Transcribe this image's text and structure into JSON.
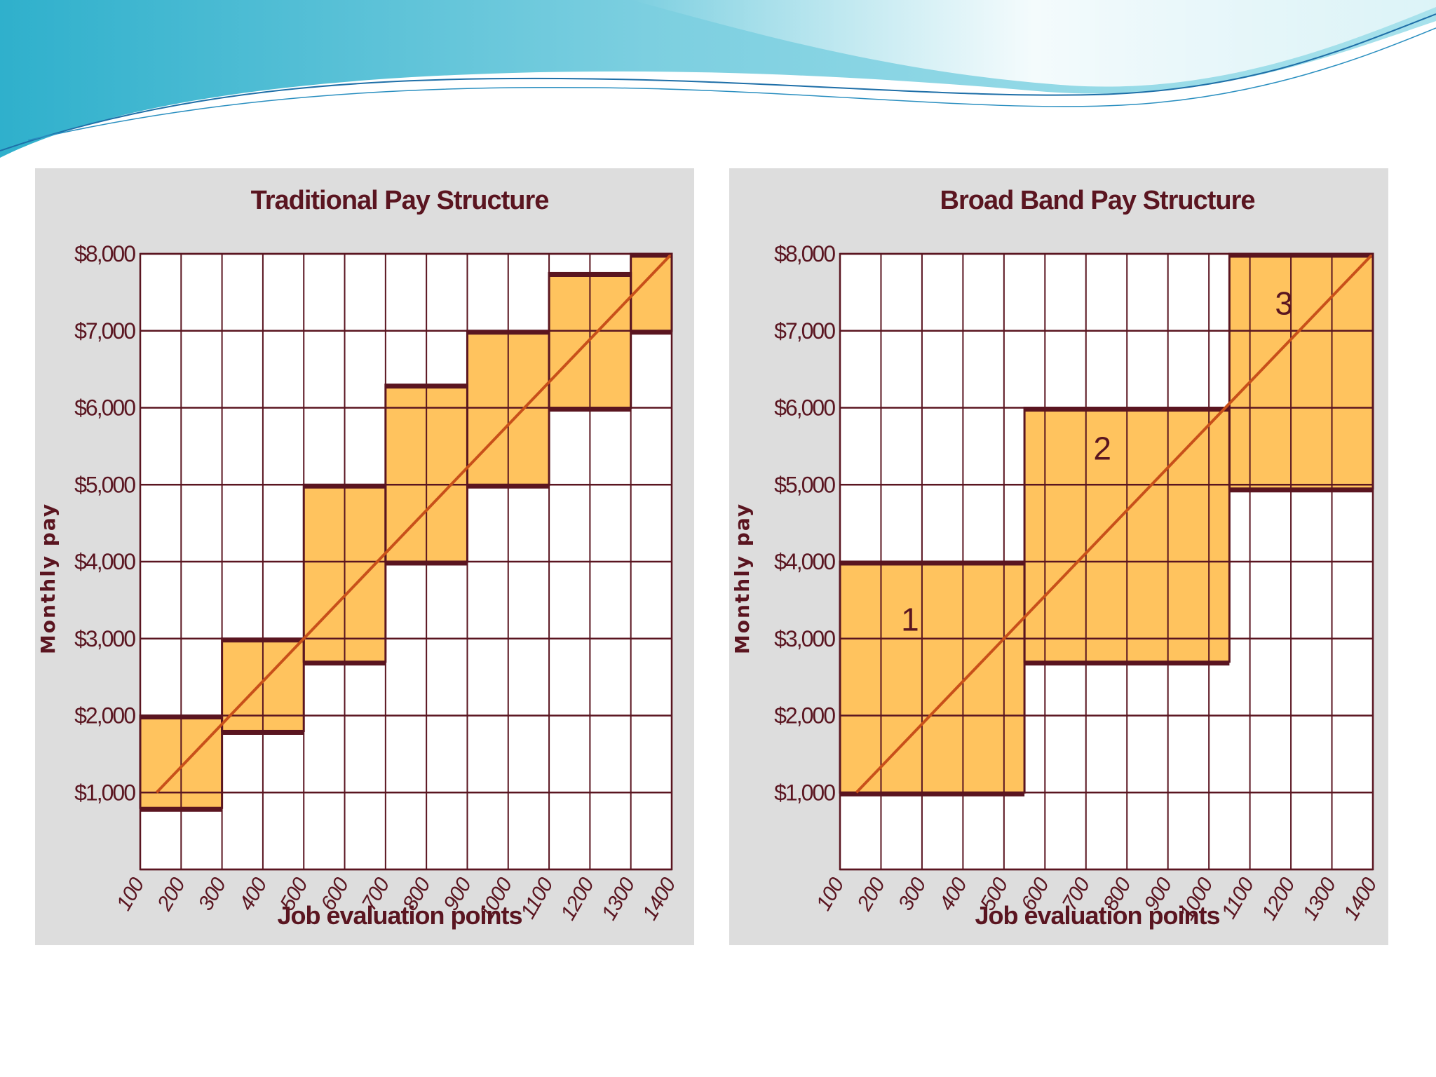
{
  "theme": {
    "header_colors": [
      "#3fb7d0",
      "#8fd6e3",
      "#d6f1f6"
    ],
    "panel_bg": "#dddddd",
    "plot_bg": "#ffffff",
    "grid_color": "#5a1520",
    "band_fill": "#ffc35e",
    "band_border": "#5a1520",
    "line_color": "#c8501a"
  },
  "chart_data": [
    {
      "type": "area",
      "title": "Traditional Pay Structure",
      "xlabel": "Job evaluation points",
      "ylabel": "Monthly pay",
      "xlim": [
        100,
        1400
      ],
      "ylim": [
        0,
        8000
      ],
      "x_ticks": [
        "100",
        "200",
        "300",
        "400",
        "500",
        "600",
        "700",
        "800",
        "900",
        "1000",
        "1100",
        "1200",
        "1300",
        "1400"
      ],
      "y_ticks": [
        "$1,000",
        "$2,000",
        "$3,000",
        "$4,000",
        "$5,000",
        "$6,000",
        "$7,000",
        "$8,000"
      ],
      "y_tick_values": [
        1000,
        2000,
        3000,
        4000,
        5000,
        6000,
        7000,
        8000
      ],
      "grid": true,
      "pay_grades": [
        {
          "x_min": 100,
          "x_max": 300,
          "y_min": 800,
          "y_max": 2000
        },
        {
          "x_min": 300,
          "x_max": 500,
          "y_min": 1800,
          "y_max": 3000
        },
        {
          "x_min": 500,
          "x_max": 700,
          "y_min": 2700,
          "y_max": 5000
        },
        {
          "x_min": 700,
          "x_max": 900,
          "y_min": 4000,
          "y_max": 6300
        },
        {
          "x_min": 900,
          "x_max": 1100,
          "y_min": 5000,
          "y_max": 7000
        },
        {
          "x_min": 1100,
          "x_max": 1300,
          "y_min": 6000,
          "y_max": 7750
        },
        {
          "x_min": 1300,
          "x_max": 1400,
          "y_min": 7000,
          "y_max": 8000
        }
      ],
      "pay_line": [
        [
          140,
          1000
        ],
        [
          1400,
          8000
        ]
      ]
    },
    {
      "type": "area",
      "title": "Broad Band Pay Structure",
      "xlabel": "Job evaluation points",
      "ylabel": "Monthly pay",
      "xlim": [
        100,
        1400
      ],
      "ylim": [
        0,
        8000
      ],
      "x_ticks": [
        "100",
        "200",
        "300",
        "400",
        "500",
        "600",
        "700",
        "800",
        "900",
        "1000",
        "1100",
        "1200",
        "1300",
        "1400"
      ],
      "y_ticks": [
        "$1,000",
        "$2,000",
        "$3,000",
        "$4,000",
        "$5,000",
        "$6,000",
        "$7,000",
        "$8,000"
      ],
      "y_tick_values": [
        1000,
        2000,
        3000,
        4000,
        5000,
        6000,
        7000,
        8000
      ],
      "grid": true,
      "pay_grades": [
        {
          "label": "1",
          "x_min": 100,
          "x_max": 550,
          "y_min": 1000,
          "y_max": 4000
        },
        {
          "label": "2",
          "x_min": 550,
          "x_max": 1050,
          "y_min": 2700,
          "y_max": 6000
        },
        {
          "label": "3",
          "x_min": 1050,
          "x_max": 1400,
          "y_min": 4950,
          "y_max": 8000
        }
      ],
      "pay_line": [
        [
          140,
          1000
        ],
        [
          1400,
          8000
        ]
      ]
    }
  ]
}
